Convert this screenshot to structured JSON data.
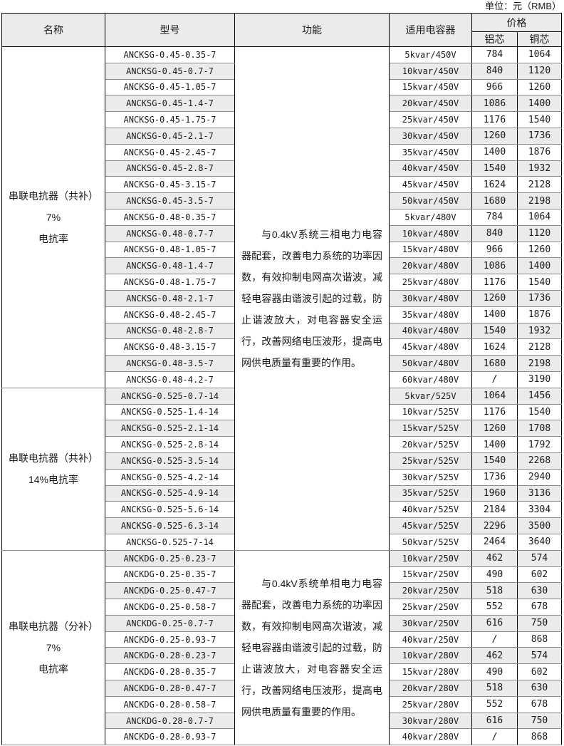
{
  "page": {
    "unit_label": "单位：元（RMB）"
  },
  "colors": {
    "stripe_bg": "#ebebeb",
    "header_bg": "#ebebeb",
    "border_dark": "#000000",
    "border_light": "#8a8a8a",
    "text": "#1a1a1a"
  },
  "table": {
    "headers": {
      "name": "名称",
      "model": "型号",
      "function": "功能",
      "capacitor": "适用电容器",
      "price": "价格",
      "aluminum": "铝芯",
      "copper": "铜芯"
    },
    "function_blocks": [
      {
        "sections": [
          0,
          1
        ],
        "text": "与0.4kV系统三相电力电容器配套，改善电力系统的功率因数，有效抑制电网高次谐波，减轻电容器由谐波引起的过载，防止谐波放大，对电容器安全运行，改善网络电压波形，提高电网供电质量有重要的作用。"
      },
      {
        "sections": [
          2
        ],
        "text": "与0.4kV系统单相电力电容器配套，改善电力系统的功率因数，有效抑制电网高次谐波，减轻电容器由谐波引起的过载，防止谐波放大，对电容器安全运行，改善网络电压波形，提高电网供电质量有重要的作用。"
      }
    ],
    "sections": [
      {
        "name_lines": [
          "串联电抗器（共补）7%",
          "电抗率"
        ],
        "rows": [
          {
            "model": "ANCKSG-0.45-0.35-7",
            "capacitor": "5kvar/450V",
            "al": "784",
            "cu": "1064"
          },
          {
            "model": "ANCKSG-0.45-0.7-7",
            "capacitor": "10kvar/450V",
            "al": "840",
            "cu": "1120"
          },
          {
            "model": "ANCKSG-0.45-1.05-7",
            "capacitor": "15kvar/450V",
            "al": "966",
            "cu": "1260"
          },
          {
            "model": "ANCKSG-0.45-1.4-7",
            "capacitor": "20kvar/450V",
            "al": "1086",
            "cu": "1400"
          },
          {
            "model": "ANCKSG-0.45-1.75-7",
            "capacitor": "25kvar/450V",
            "al": "1176",
            "cu": "1540"
          },
          {
            "model": "ANCKSG-0.45-2.1-7",
            "capacitor": "30kvar/450V",
            "al": "1260",
            "cu": "1736"
          },
          {
            "model": "ANCKSG-0.45-2.45-7",
            "capacitor": "35kvar/450V",
            "al": "1400",
            "cu": "1876"
          },
          {
            "model": "ANCKSG-0.45-2.8-7",
            "capacitor": "40kvar/450V",
            "al": "1540",
            "cu": "1932"
          },
          {
            "model": "ANCKSG-0.45-3.15-7",
            "capacitor": "45kvar/450V",
            "al": "1624",
            "cu": "2128"
          },
          {
            "model": "ANCKSG-0.45-3.5-7",
            "capacitor": "50kvar/450V",
            "al": "1680",
            "cu": "2198"
          },
          {
            "model": "ANCKSG-0.48-0.35-7",
            "capacitor": "5kvar/480V",
            "al": "784",
            "cu": "1064"
          },
          {
            "model": "ANCKSG-0.48-0.7-7",
            "capacitor": "10kvar/480V",
            "al": "840",
            "cu": "1120"
          },
          {
            "model": "ANCKSG-0.48-1.05-7",
            "capacitor": "15kvar/480V",
            "al": "966",
            "cu": "1260"
          },
          {
            "model": "ANCKSG-0.48-1.4-7",
            "capacitor": "20kvar/480V",
            "al": "1086",
            "cu": "1400"
          },
          {
            "model": "ANCKSG-0.48-1.75-7",
            "capacitor": "25kvar/480V",
            "al": "1176",
            "cu": "1540"
          },
          {
            "model": "ANCKSG-0.48-2.1-7",
            "capacitor": "30kvar/480V",
            "al": "1260",
            "cu": "1736"
          },
          {
            "model": "ANCKSG-0.48-2.45-7",
            "capacitor": "35kvar/480V",
            "al": "1400",
            "cu": "1876"
          },
          {
            "model": "ANCKSG-0.48-2.8-7",
            "capacitor": "40kvar/480V",
            "al": "1540",
            "cu": "1932"
          },
          {
            "model": "ANCKSG-0.48-3.15-7",
            "capacitor": "45kvar/480V",
            "al": "1624",
            "cu": "2128"
          },
          {
            "model": "ANCKSG-0.48-3.5-7",
            "capacitor": "50kvar/480V",
            "al": "1680",
            "cu": "2198"
          },
          {
            "model": "ANCKSG-0.48-4.2-7",
            "capacitor": "60kvar/480V",
            "al": "/",
            "cu": "3190"
          }
        ]
      },
      {
        "name_lines": [
          "串联电抗器（共补）",
          "14%电抗率"
        ],
        "rows": [
          {
            "model": "ANCKSG-0.525-0.7-14",
            "capacitor": "5kvar/525V",
            "al": "1064",
            "cu": "1456"
          },
          {
            "model": "ANCKSG-0.525-1.4-14",
            "capacitor": "10kvar/525V",
            "al": "1176",
            "cu": "1540"
          },
          {
            "model": "ANCKSG-0.525-2.1-14",
            "capacitor": "15kvar/525V",
            "al": "1260",
            "cu": "1708"
          },
          {
            "model": "ANCKSG-0.525-2.8-14",
            "capacitor": "20kvar/525V",
            "al": "1400",
            "cu": "1792"
          },
          {
            "model": "ANCKSG-0.525-3.5-14",
            "capacitor": "25kvar/525V",
            "al": "1540",
            "cu": "2268"
          },
          {
            "model": "ANCKSG-0.525-4.2-14",
            "capacitor": "30kvar/525V",
            "al": "1736",
            "cu": "2940"
          },
          {
            "model": "ANCKSG-0.525-4.9-14",
            "capacitor": "35kvar/525V",
            "al": "1960",
            "cu": "3136"
          },
          {
            "model": "ANCKSG-0.525-5.6-14",
            "capacitor": "40kvar/525V",
            "al": "2184",
            "cu": "3304"
          },
          {
            "model": "ANCKSG-0.525-6.3-14",
            "capacitor": "45kvar/525V",
            "al": "2296",
            "cu": "3500"
          },
          {
            "model": "ANCKSG-0.525-7-14",
            "capacitor": "50kvar/525V",
            "al": "2464",
            "cu": "3640"
          }
        ]
      },
      {
        "name_lines": [
          "串联电抗器（分补）7%",
          "电抗率"
        ],
        "rows": [
          {
            "model": "ANCKDG-0.25-0.23-7",
            "capacitor": "10kvar/250V",
            "al": "462",
            "cu": "574"
          },
          {
            "model": "ANCKDG-0.25-0.35-7",
            "capacitor": "15kvar/250V",
            "al": "490",
            "cu": "602"
          },
          {
            "model": "ANCKDG-0.25-0.47-7",
            "capacitor": "20kvar/250V",
            "al": "518",
            "cu": "630"
          },
          {
            "model": "ANCKDG-0.25-0.58-7",
            "capacitor": "25kvar/250V",
            "al": "552",
            "cu": "678"
          },
          {
            "model": "ANCKDG-0.25-0.7-7",
            "capacitor": "30kvar/250V",
            "al": "616",
            "cu": "750"
          },
          {
            "model": "ANCKDG-0.25-0.93-7",
            "capacitor": "40kvar/250V",
            "al": "/",
            "cu": "868"
          },
          {
            "model": "ANCKDG-0.28-0.23-7",
            "capacitor": "10kvar/280V",
            "al": "462",
            "cu": "574"
          },
          {
            "model": "ANCKDG-0.28-0.35-7",
            "capacitor": "15kvar/280V",
            "al": "490",
            "cu": "602"
          },
          {
            "model": "ANCKDG-0.28-0.47-7",
            "capacitor": "20kvar/280V",
            "al": "518",
            "cu": "630"
          },
          {
            "model": "ANCKDG-0.28-0.58-7",
            "capacitor": "25kvar/280V",
            "al": "552",
            "cu": "678"
          },
          {
            "model": "ANCKDG-0.28-0.7-7",
            "capacitor": "30kvar/280V",
            "al": "616",
            "cu": "750"
          },
          {
            "model": "ANCKDG-0.28-0.93-7",
            "capacitor": "40kvar/280V",
            "al": "/",
            "cu": "868"
          }
        ]
      }
    ]
  }
}
